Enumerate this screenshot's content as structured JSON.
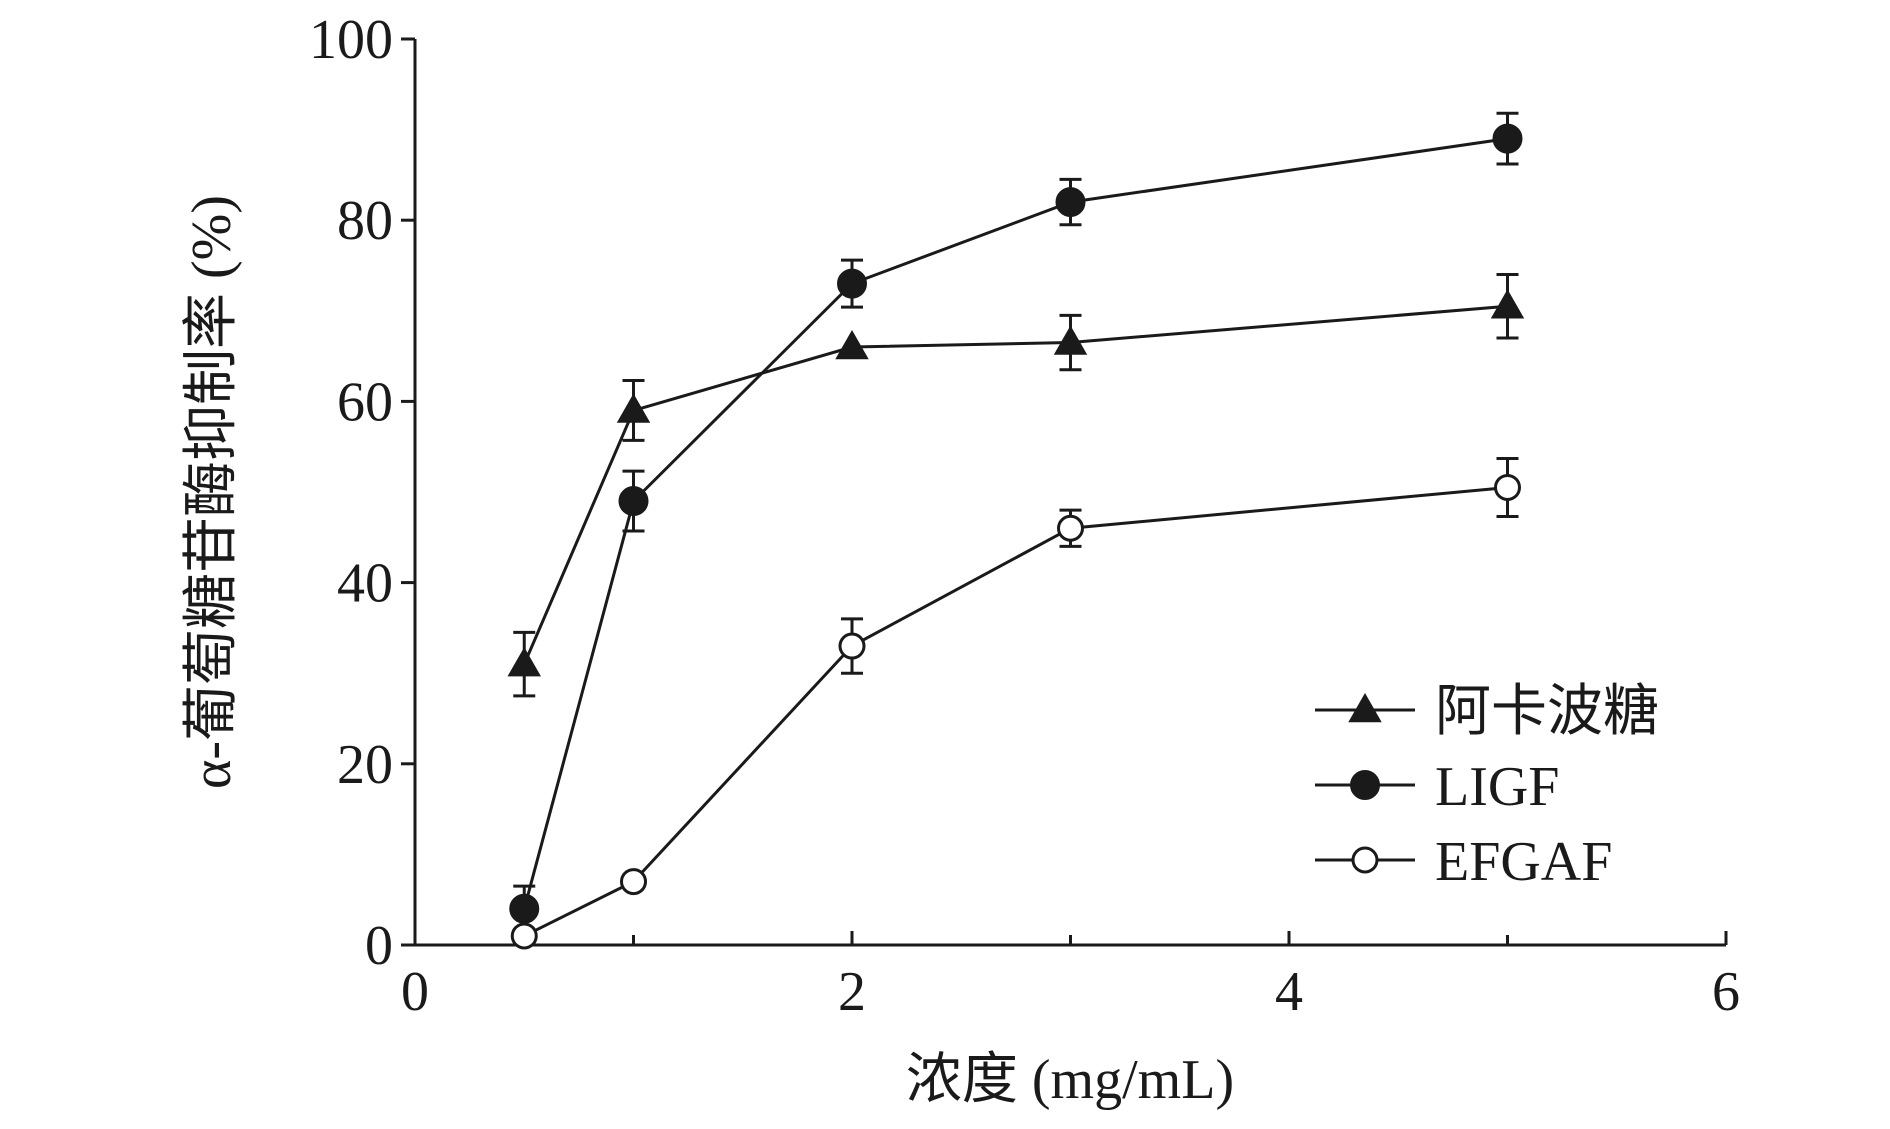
{
  "chart_data": {
    "type": "line",
    "title": "",
    "xlabel": "浓度 (mg/mL)",
    "ylabel": "α-葡萄糖苷酶抑制率 (%)",
    "xlim": [
      0,
      6
    ],
    "ylim": [
      0,
      100
    ],
    "x_ticks": [
      0,
      2,
      4,
      6
    ],
    "x_minor_ticks": [
      1,
      3,
      5
    ],
    "y_ticks": [
      0,
      20,
      40,
      60,
      80,
      100
    ],
    "grid": false,
    "legend_position": "bottom-right",
    "series": [
      {
        "name": "阿卡波糖",
        "marker": "filled-triangle",
        "x": [
          0.5,
          1,
          2,
          3,
          5
        ],
        "y": [
          31,
          59,
          66,
          66.5,
          70.5
        ],
        "err": [
          3.5,
          3.3,
          0,
          3.0,
          3.5
        ]
      },
      {
        "name": "LIGF",
        "marker": "filled-circle",
        "x": [
          0.5,
          1,
          2,
          3,
          5
        ],
        "y": [
          4,
          49,
          73,
          82,
          89
        ],
        "err": [
          2.5,
          3.3,
          2.6,
          2.5,
          2.8
        ]
      },
      {
        "name": "EFGAF",
        "marker": "open-circle",
        "x": [
          0.5,
          1,
          2,
          3,
          5
        ],
        "y": [
          1,
          7,
          33,
          46,
          50.5
        ],
        "err": [
          0,
          0,
          3.0,
          2.0,
          3.2
        ]
      }
    ]
  },
  "colors": {
    "line": "#1a1a1a",
    "background": "#ffffff"
  }
}
